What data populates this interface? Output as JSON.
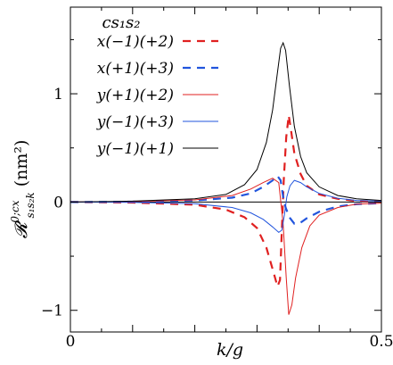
{
  "chart_data": {
    "type": "line",
    "xlabel": "k/g",
    "ylabel": "R^{0;cx}_{s1 s2 k} (nm²)",
    "ylabel_main": "𝓡",
    "ylabel_sup": "0;cx",
    "ylabel_sub": "s₁s₂k",
    "ylabel_unit": "(nm²)",
    "xlim": [
      0,
      0.5
    ],
    "ylim": [
      -1.2,
      1.8
    ],
    "x_ticks": [
      0,
      0.5
    ],
    "x_tick_labels": [
      "0",
      "0.5"
    ],
    "y_ticks": [
      -1,
      0,
      1
    ],
    "y_tick_labels": [
      "−1",
      "0",
      "1"
    ],
    "grid": false,
    "legend_title": "cs₁s₂",
    "legend_position": "top-left",
    "series": [
      {
        "name": "x(−1)(+2)",
        "color": "#e02020",
        "style": "dashed",
        "points": [
          [
            0.0,
            0.0
          ],
          [
            0.1,
            -0.005
          ],
          [
            0.2,
            -0.025
          ],
          [
            0.25,
            -0.07
          ],
          [
            0.28,
            -0.14
          ],
          [
            0.3,
            -0.24
          ],
          [
            0.315,
            -0.42
          ],
          [
            0.325,
            -0.62
          ],
          [
            0.333,
            -0.78
          ],
          [
            0.337,
            -0.72
          ],
          [
            0.34,
            -0.25
          ],
          [
            0.343,
            0.2
          ],
          [
            0.347,
            0.6
          ],
          [
            0.351,
            0.8
          ],
          [
            0.355,
            0.65
          ],
          [
            0.36,
            0.45
          ],
          [
            0.37,
            0.26
          ],
          [
            0.38,
            0.15
          ],
          [
            0.4,
            0.07
          ],
          [
            0.43,
            0.03
          ],
          [
            0.46,
            0.01
          ],
          [
            0.5,
            0.005
          ]
        ]
      },
      {
        "name": "x(+1)(+3)",
        "color": "#2255dd",
        "style": "dashed",
        "points": [
          [
            0.0,
            0.0
          ],
          [
            0.1,
            0.003
          ],
          [
            0.2,
            0.015
          ],
          [
            0.26,
            0.04
          ],
          [
            0.29,
            0.08
          ],
          [
            0.31,
            0.14
          ],
          [
            0.325,
            0.2
          ],
          [
            0.333,
            0.24
          ],
          [
            0.338,
            0.2
          ],
          [
            0.342,
            0.05
          ],
          [
            0.346,
            -0.05
          ],
          [
            0.352,
            -0.14
          ],
          [
            0.36,
            -0.2
          ],
          [
            0.37,
            -0.19
          ],
          [
            0.38,
            -0.15
          ],
          [
            0.4,
            -0.09
          ],
          [
            0.43,
            -0.04
          ],
          [
            0.46,
            -0.02
          ],
          [
            0.5,
            -0.01
          ]
        ]
      },
      {
        "name": "y(+1)(+2)",
        "color": "#e02020",
        "style": "solid",
        "points": [
          [
            0.0,
            0.0
          ],
          [
            0.1,
            0.005
          ],
          [
            0.2,
            0.02
          ],
          [
            0.26,
            0.06
          ],
          [
            0.29,
            0.12
          ],
          [
            0.31,
            0.18
          ],
          [
            0.325,
            0.22
          ],
          [
            0.335,
            0.18
          ],
          [
            0.342,
            -0.2
          ],
          [
            0.347,
            -0.7
          ],
          [
            0.351,
            -1.04
          ],
          [
            0.356,
            -0.95
          ],
          [
            0.362,
            -0.7
          ],
          [
            0.372,
            -0.42
          ],
          [
            0.385,
            -0.22
          ],
          [
            0.4,
            -0.12
          ],
          [
            0.43,
            -0.05
          ],
          [
            0.46,
            -0.02
          ],
          [
            0.5,
            -0.01
          ]
        ]
      },
      {
        "name": "y(−1)(+3)",
        "color": "#2255dd",
        "style": "solid",
        "points": [
          [
            0.0,
            0.0
          ],
          [
            0.1,
            -0.003
          ],
          [
            0.2,
            -0.015
          ],
          [
            0.26,
            -0.05
          ],
          [
            0.29,
            -0.1
          ],
          [
            0.31,
            -0.16
          ],
          [
            0.325,
            -0.23
          ],
          [
            0.335,
            -0.28
          ],
          [
            0.34,
            -0.26
          ],
          [
            0.344,
            -0.12
          ],
          [
            0.348,
            0.05
          ],
          [
            0.353,
            0.15
          ],
          [
            0.36,
            0.2
          ],
          [
            0.37,
            0.18
          ],
          [
            0.38,
            0.14
          ],
          [
            0.4,
            0.08
          ],
          [
            0.43,
            0.035
          ],
          [
            0.46,
            0.015
          ],
          [
            0.5,
            0.008
          ]
        ]
      },
      {
        "name": "y(−1)(+1)",
        "color": "#000000",
        "style": "solid",
        "points": [
          [
            0.0,
            0.0
          ],
          [
            0.1,
            0.008
          ],
          [
            0.2,
            0.03
          ],
          [
            0.25,
            0.07
          ],
          [
            0.28,
            0.16
          ],
          [
            0.3,
            0.3
          ],
          [
            0.315,
            0.55
          ],
          [
            0.325,
            0.85
          ],
          [
            0.333,
            1.2
          ],
          [
            0.338,
            1.42
          ],
          [
            0.342,
            1.47
          ],
          [
            0.346,
            1.4
          ],
          [
            0.352,
            1.08
          ],
          [
            0.36,
            0.7
          ],
          [
            0.37,
            0.42
          ],
          [
            0.38,
            0.27
          ],
          [
            0.4,
            0.14
          ],
          [
            0.43,
            0.06
          ],
          [
            0.46,
            0.03
          ],
          [
            0.5,
            0.015
          ]
        ]
      }
    ]
  }
}
